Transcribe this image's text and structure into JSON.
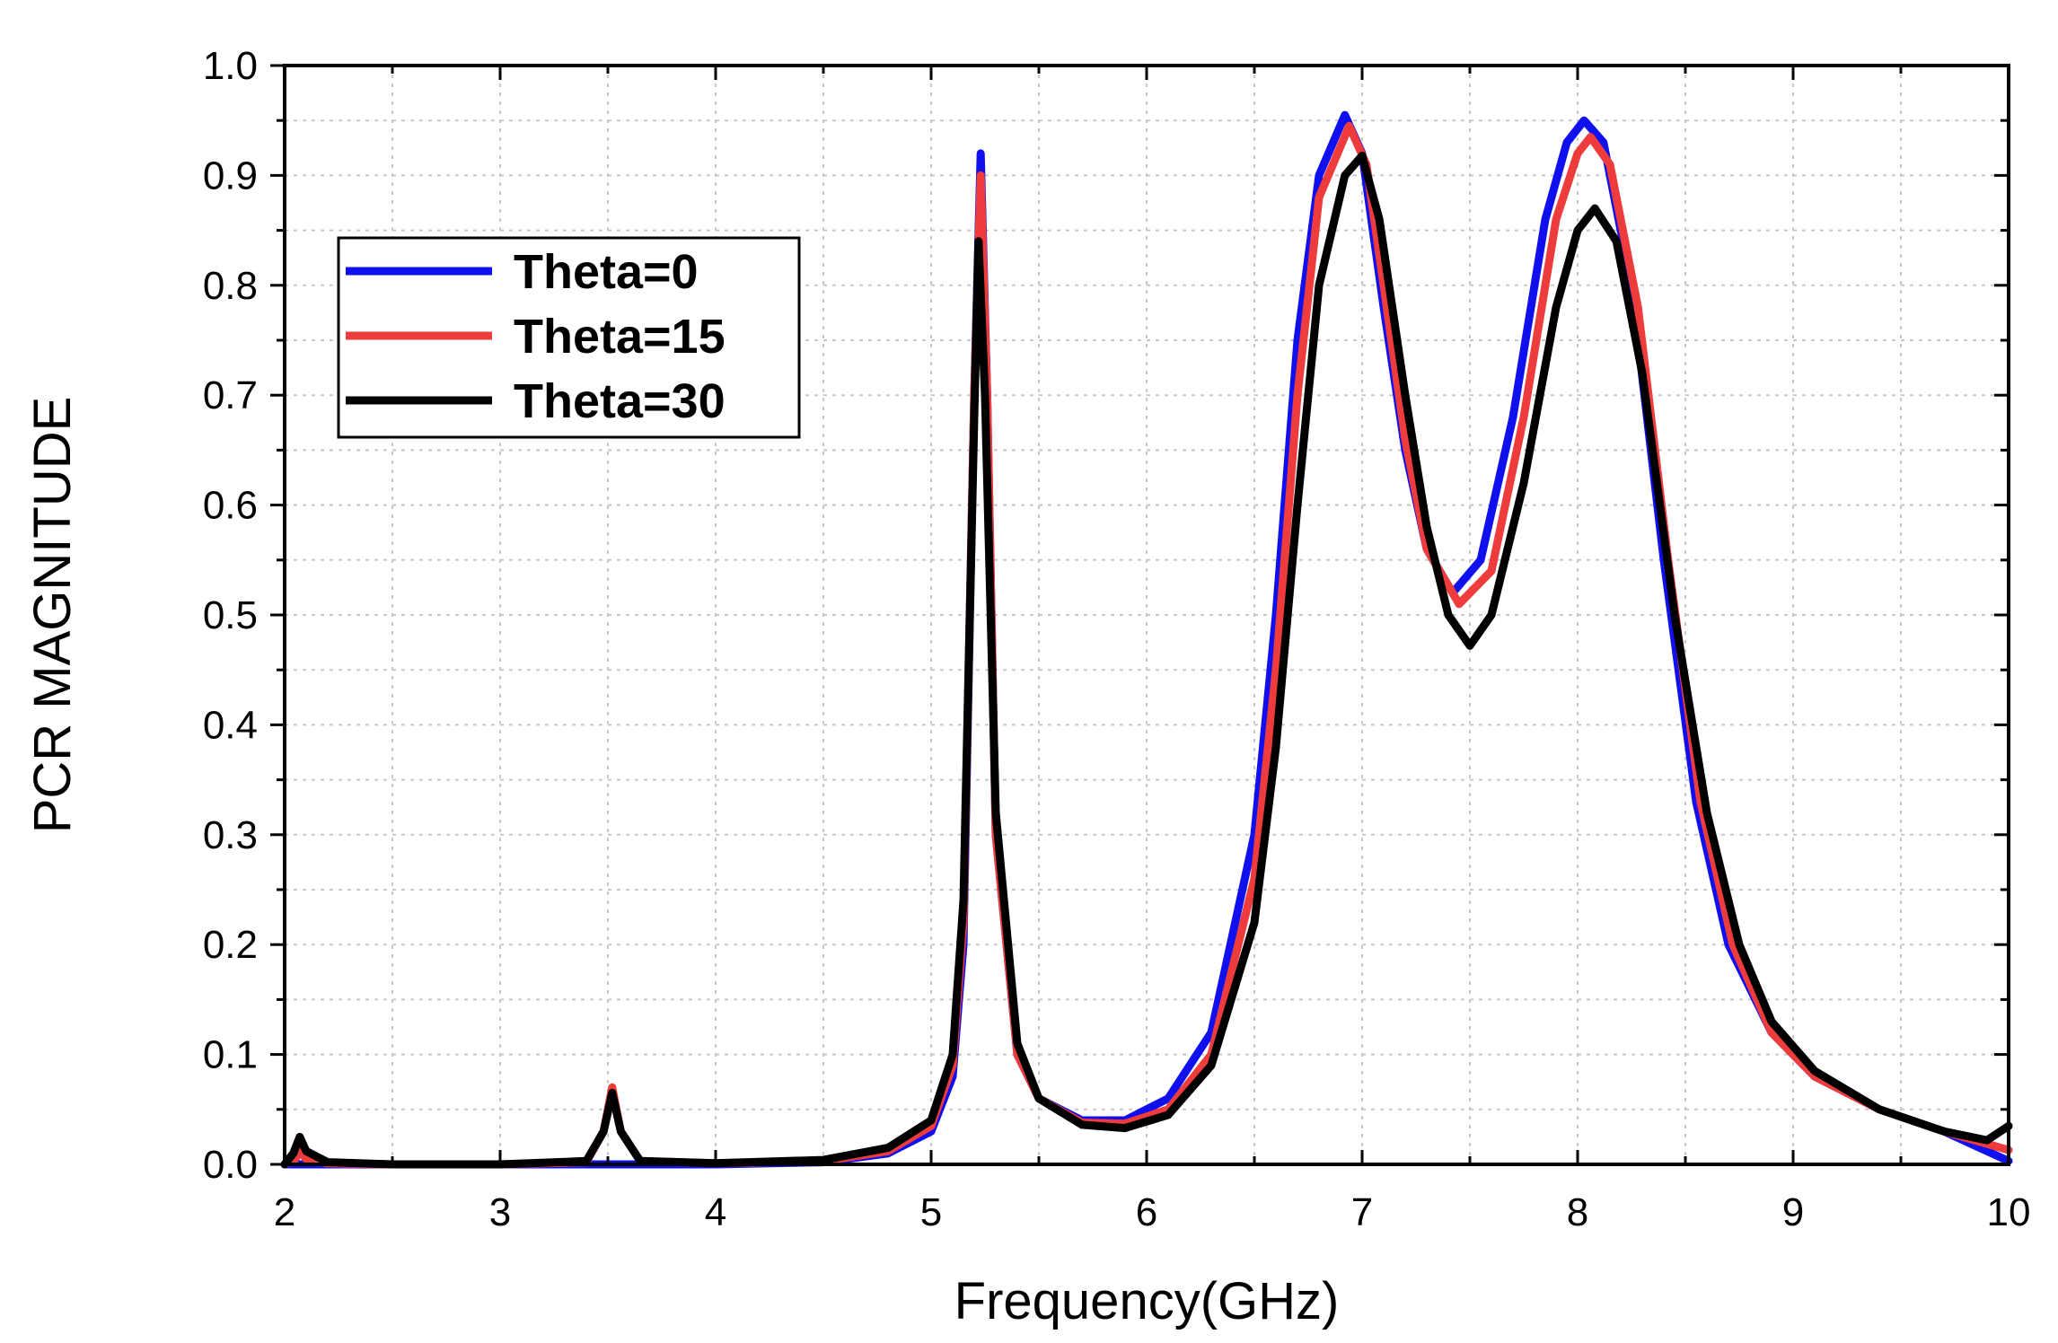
{
  "chart_data": {
    "type": "line",
    "title": "",
    "xlabel": "Frequency(GHz)",
    "ylabel": "PCR MAGNITUDE",
    "xlim": [
      2,
      10
    ],
    "ylim": [
      0,
      1.0
    ],
    "x_ticks": [
      "2",
      "3",
      "4",
      "5",
      "6",
      "7",
      "8",
      "9",
      "10"
    ],
    "y_ticks": [
      "0.0",
      "0.1",
      "0.2",
      "0.3",
      "0.4",
      "0.5",
      "0.6",
      "0.7",
      "0.8",
      "0.9",
      "1.0"
    ],
    "grid": true,
    "legend_position": "top-left",
    "series": [
      {
        "name": "Theta=0",
        "color": "#1010ee",
        "points": [
          [
            2.0,
            0.0
          ],
          [
            2.5,
            0.0
          ],
          [
            3.0,
            0.0
          ],
          [
            3.5,
            0.0
          ],
          [
            4.0,
            0.0
          ],
          [
            4.5,
            0.002
          ],
          [
            4.8,
            0.01
          ],
          [
            5.0,
            0.03
          ],
          [
            5.1,
            0.08
          ],
          [
            5.15,
            0.2
          ],
          [
            5.2,
            0.7
          ],
          [
            5.23,
            0.92
          ],
          [
            5.26,
            0.7
          ],
          [
            5.3,
            0.3
          ],
          [
            5.4,
            0.1
          ],
          [
            5.5,
            0.06
          ],
          [
            5.7,
            0.04
          ],
          [
            5.9,
            0.04
          ],
          [
            6.1,
            0.06
          ],
          [
            6.3,
            0.12
          ],
          [
            6.5,
            0.3
          ],
          [
            6.6,
            0.5
          ],
          [
            6.7,
            0.75
          ],
          [
            6.8,
            0.9
          ],
          [
            6.92,
            0.955
          ],
          [
            7.0,
            0.92
          ],
          [
            7.1,
            0.78
          ],
          [
            7.2,
            0.65
          ],
          [
            7.3,
            0.56
          ],
          [
            7.42,
            0.52
          ],
          [
            7.55,
            0.55
          ],
          [
            7.7,
            0.68
          ],
          [
            7.85,
            0.86
          ],
          [
            7.95,
            0.93
          ],
          [
            8.03,
            0.95
          ],
          [
            8.12,
            0.93
          ],
          [
            8.25,
            0.8
          ],
          [
            8.4,
            0.55
          ],
          [
            8.55,
            0.33
          ],
          [
            8.7,
            0.2
          ],
          [
            8.9,
            0.12
          ],
          [
            9.1,
            0.08
          ],
          [
            9.4,
            0.05
          ],
          [
            9.7,
            0.03
          ],
          [
            10.0,
            0.003
          ]
        ]
      },
      {
        "name": "Theta=15",
        "color": "#ee3c3c",
        "points": [
          [
            2.0,
            0.0
          ],
          [
            2.05,
            0.005
          ],
          [
            2.07,
            0.012
          ],
          [
            2.1,
            0.005
          ],
          [
            2.2,
            0.001
          ],
          [
            2.5,
            0.0
          ],
          [
            3.0,
            0.0
          ],
          [
            3.4,
            0.002
          ],
          [
            3.48,
            0.03
          ],
          [
            3.52,
            0.07
          ],
          [
            3.56,
            0.03
          ],
          [
            3.65,
            0.003
          ],
          [
            4.0,
            0.001
          ],
          [
            4.5,
            0.003
          ],
          [
            4.8,
            0.012
          ],
          [
            5.0,
            0.035
          ],
          [
            5.1,
            0.09
          ],
          [
            5.15,
            0.22
          ],
          [
            5.2,
            0.7
          ],
          [
            5.23,
            0.9
          ],
          [
            5.26,
            0.7
          ],
          [
            5.3,
            0.3
          ],
          [
            5.4,
            0.1
          ],
          [
            5.5,
            0.06
          ],
          [
            5.7,
            0.038
          ],
          [
            5.9,
            0.037
          ],
          [
            6.1,
            0.05
          ],
          [
            6.3,
            0.1
          ],
          [
            6.5,
            0.26
          ],
          [
            6.6,
            0.45
          ],
          [
            6.7,
            0.7
          ],
          [
            6.8,
            0.88
          ],
          [
            6.94,
            0.945
          ],
          [
            7.02,
            0.91
          ],
          [
            7.1,
            0.8
          ],
          [
            7.2,
            0.66
          ],
          [
            7.3,
            0.56
          ],
          [
            7.45,
            0.51
          ],
          [
            7.6,
            0.54
          ],
          [
            7.75,
            0.68
          ],
          [
            7.9,
            0.86
          ],
          [
            8.0,
            0.92
          ],
          [
            8.06,
            0.935
          ],
          [
            8.15,
            0.91
          ],
          [
            8.28,
            0.78
          ],
          [
            8.42,
            0.55
          ],
          [
            8.57,
            0.33
          ],
          [
            8.72,
            0.2
          ],
          [
            8.9,
            0.12
          ],
          [
            9.1,
            0.08
          ],
          [
            9.4,
            0.05
          ],
          [
            9.7,
            0.03
          ],
          [
            10.0,
            0.013
          ]
        ]
      },
      {
        "name": "Theta=30",
        "color": "#000000",
        "points": [
          [
            2.0,
            0.0
          ],
          [
            2.04,
            0.01
          ],
          [
            2.07,
            0.025
          ],
          [
            2.1,
            0.012
          ],
          [
            2.2,
            0.002
          ],
          [
            2.5,
            0.0
          ],
          [
            3.0,
            0.0
          ],
          [
            3.4,
            0.003
          ],
          [
            3.48,
            0.03
          ],
          [
            3.52,
            0.065
          ],
          [
            3.56,
            0.03
          ],
          [
            3.65,
            0.003
          ],
          [
            4.0,
            0.001
          ],
          [
            4.5,
            0.004
          ],
          [
            4.8,
            0.015
          ],
          [
            5.0,
            0.04
          ],
          [
            5.1,
            0.1
          ],
          [
            5.15,
            0.24
          ],
          [
            5.2,
            0.68
          ],
          [
            5.22,
            0.84
          ],
          [
            5.25,
            0.7
          ],
          [
            5.3,
            0.32
          ],
          [
            5.4,
            0.11
          ],
          [
            5.5,
            0.06
          ],
          [
            5.7,
            0.036
          ],
          [
            5.9,
            0.033
          ],
          [
            6.1,
            0.045
          ],
          [
            6.3,
            0.09
          ],
          [
            6.5,
            0.22
          ],
          [
            6.6,
            0.38
          ],
          [
            6.7,
            0.6
          ],
          [
            6.8,
            0.8
          ],
          [
            6.92,
            0.9
          ],
          [
            7.0,
            0.918
          ],
          [
            7.08,
            0.86
          ],
          [
            7.2,
            0.7
          ],
          [
            7.3,
            0.58
          ],
          [
            7.4,
            0.5
          ],
          [
            7.5,
            0.472
          ],
          [
            7.6,
            0.5
          ],
          [
            7.75,
            0.62
          ],
          [
            7.9,
            0.78
          ],
          [
            8.0,
            0.85
          ],
          [
            8.08,
            0.87
          ],
          [
            8.18,
            0.84
          ],
          [
            8.3,
            0.72
          ],
          [
            8.45,
            0.5
          ],
          [
            8.6,
            0.32
          ],
          [
            8.75,
            0.2
          ],
          [
            8.9,
            0.13
          ],
          [
            9.1,
            0.085
          ],
          [
            9.4,
            0.05
          ],
          [
            9.7,
            0.03
          ],
          [
            9.9,
            0.022
          ],
          [
            10.0,
            0.035
          ]
        ]
      }
    ]
  }
}
